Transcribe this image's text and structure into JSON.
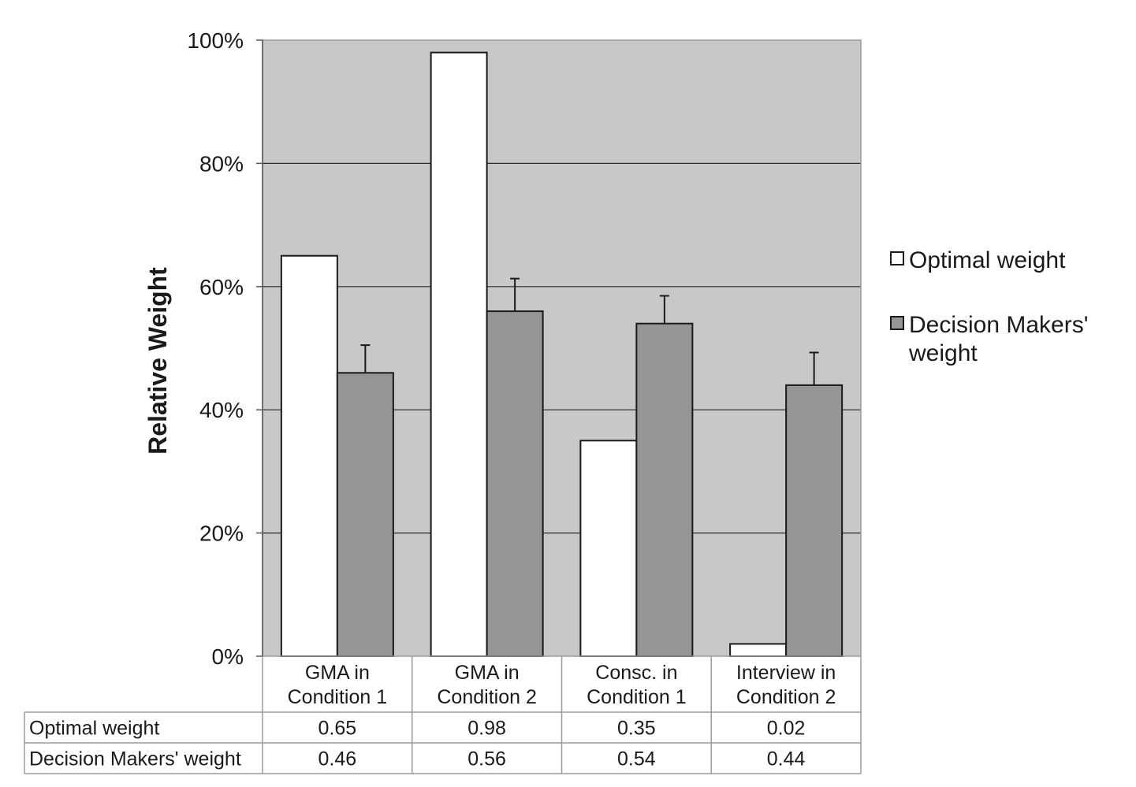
{
  "chart_data": {
    "type": "bar",
    "ylabel": "Relative Weight",
    "ylim": [
      0,
      1
    ],
    "yticks": [
      "0%",
      "20%",
      "40%",
      "60%",
      "80%",
      "100%"
    ],
    "grid": true,
    "legend_position": "right",
    "categories": [
      [
        "GMA in",
        "Condition 1"
      ],
      [
        "GMA in",
        "Condition 2"
      ],
      [
        "Consc. in",
        "Condition 1"
      ],
      [
        "Interview in",
        "Condition 2"
      ]
    ],
    "series": [
      {
        "name": "Optimal weight",
        "legend_lines": [
          "Optimal weight"
        ],
        "values": [
          0.65,
          0.98,
          0.35,
          0.02
        ],
        "labels": [
          "0.65",
          "0.98",
          "0.35",
          "0.02"
        ],
        "color": "#ffffff"
      },
      {
        "name": "Decision Makers' weight",
        "legend_lines": [
          "Decision Makers'",
          "weight"
        ],
        "values": [
          0.46,
          0.56,
          0.54,
          0.44
        ],
        "labels": [
          "0.46",
          "0.56",
          "0.54",
          "0.44"
        ],
        "error_upper": [
          0.505,
          0.613,
          0.585,
          0.493
        ],
        "color": "#939596"
      }
    ],
    "colors": {
      "plot_background": "#c7c8ca",
      "gridline": "#2a2a2a",
      "bar_outline": "#1a1a1a",
      "table_border": "#9a9a9a"
    }
  }
}
